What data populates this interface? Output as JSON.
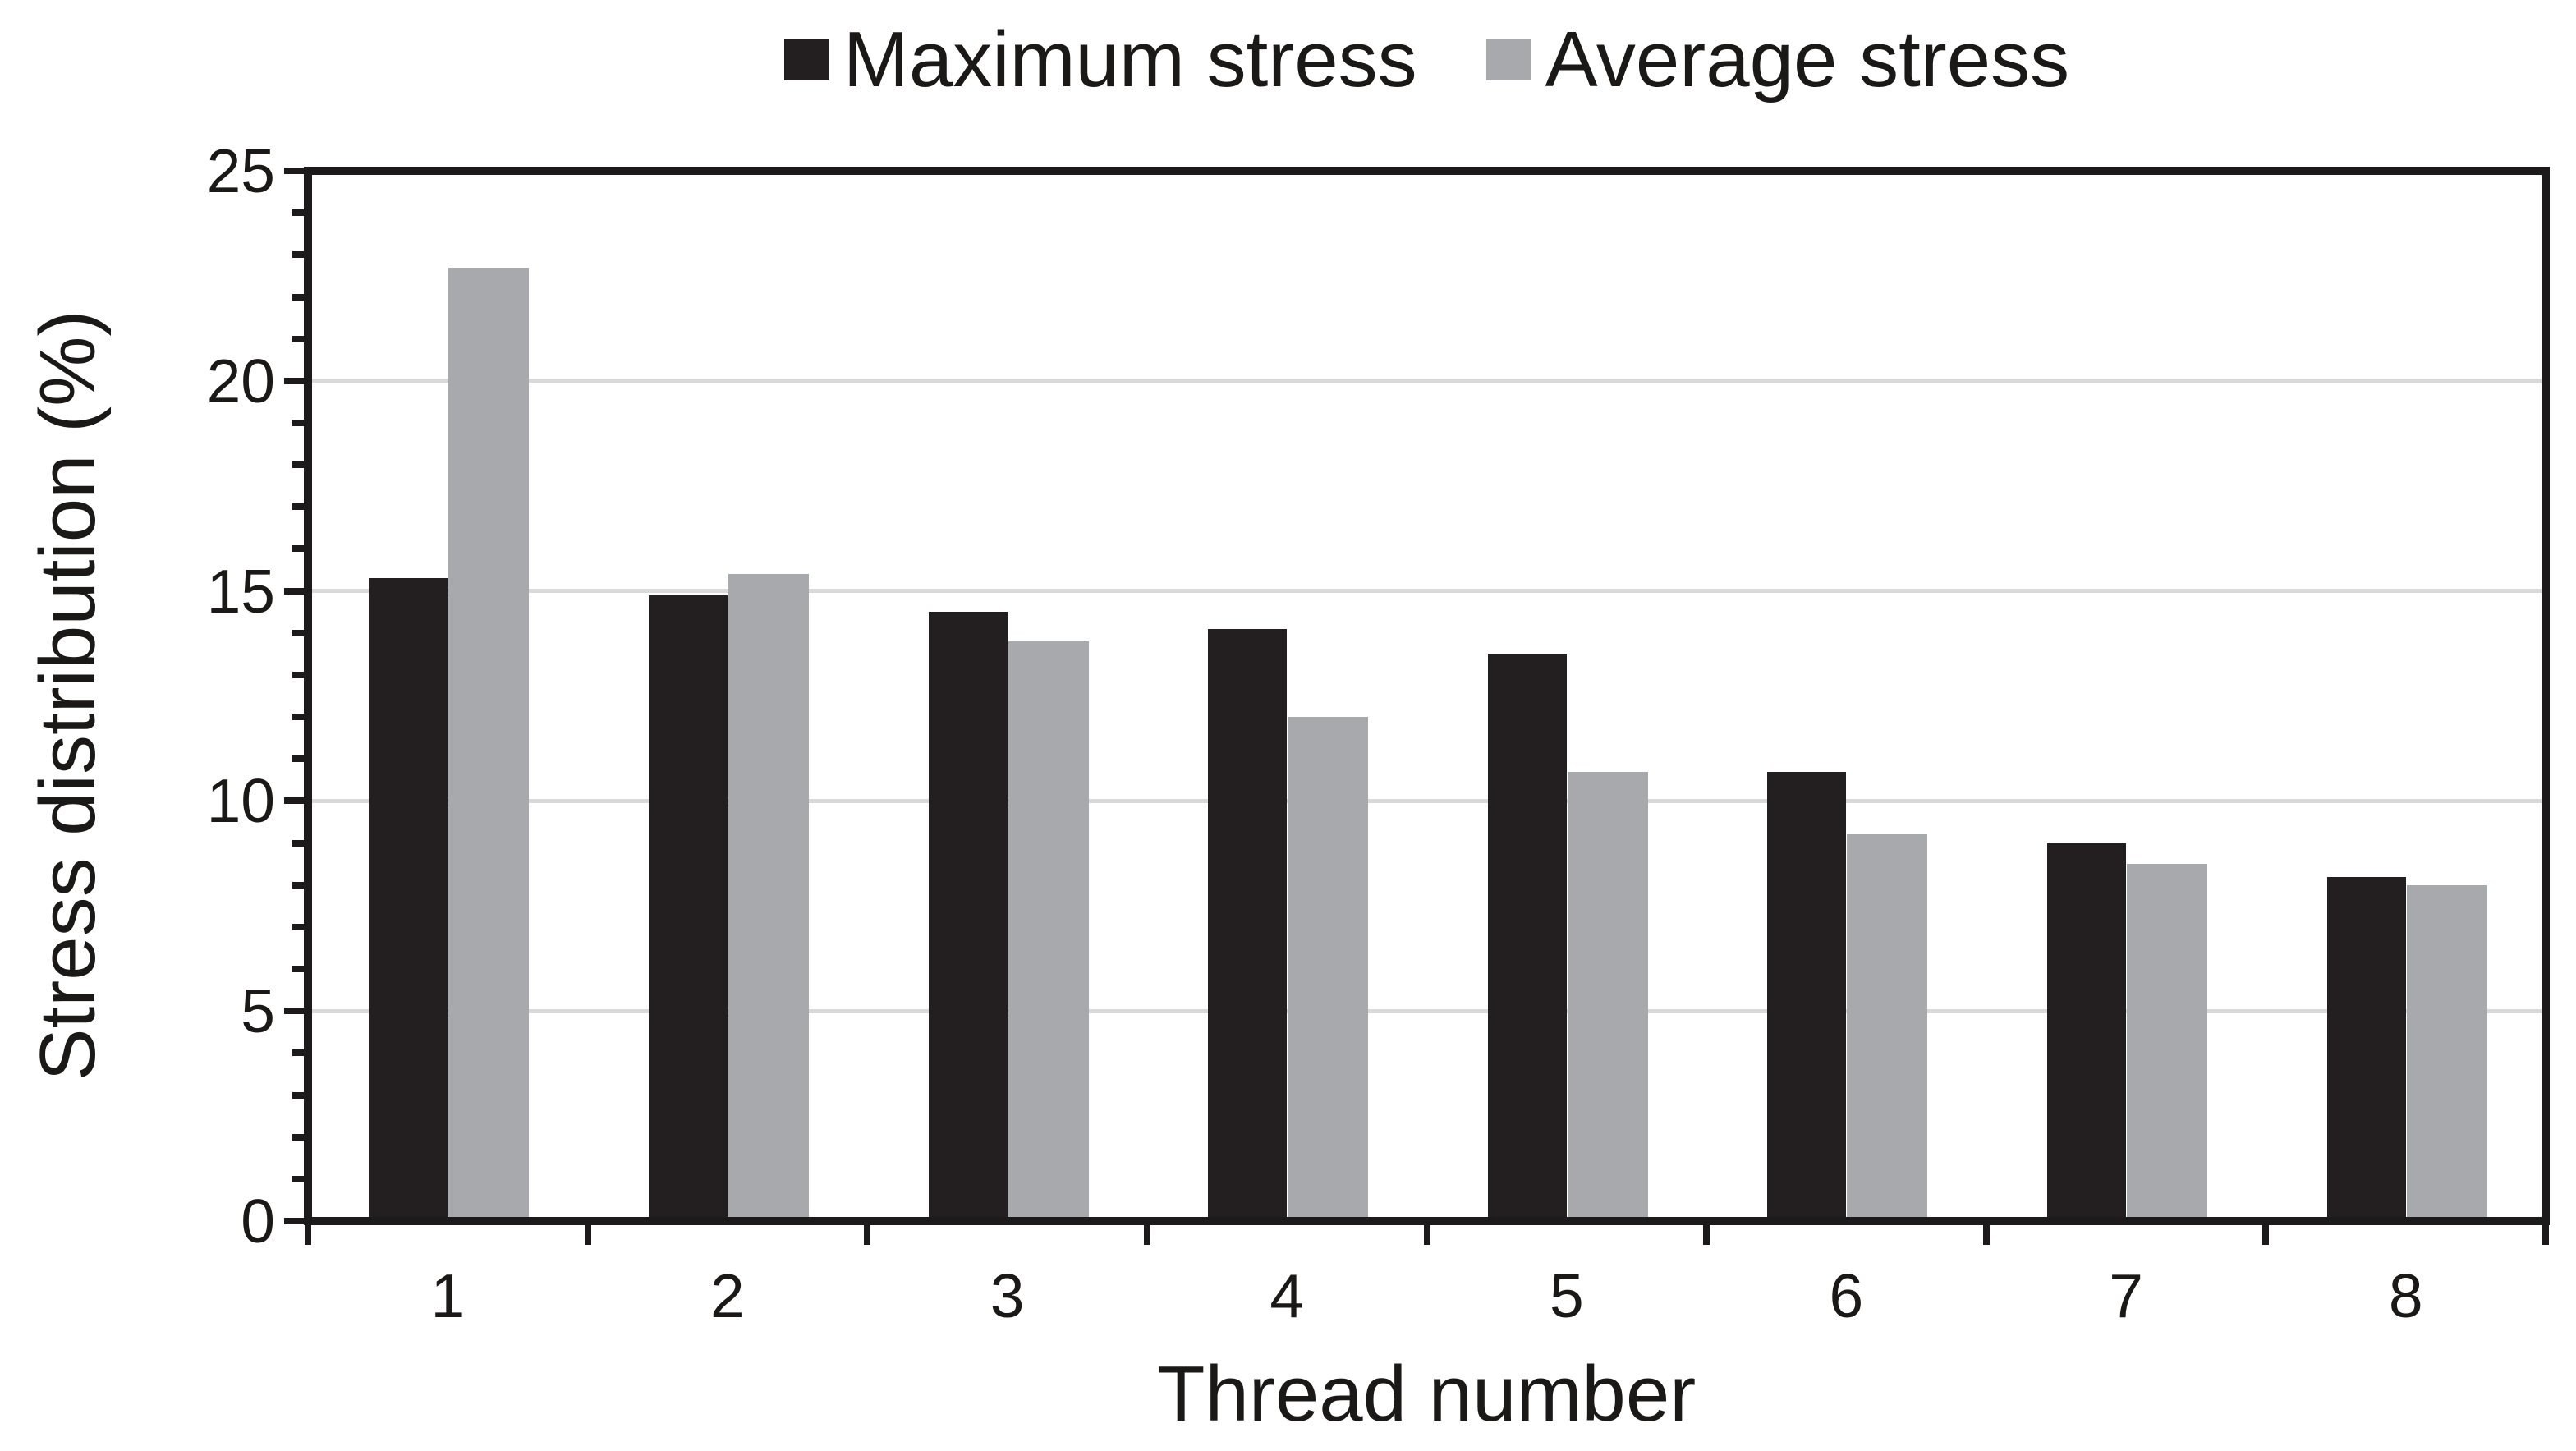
{
  "figure": {
    "legend": {
      "items": [
        {
          "label": "Maximum stress",
          "color": "#231F20"
        },
        {
          "label": "Average stress",
          "color": "#A7A9AC"
        }
      ]
    },
    "y_axis": {
      "title": "Stress distribution (%)",
      "tick_labels": [
        "0",
        "5",
        "10",
        "15",
        "20",
        "25"
      ]
    },
    "x_axis": {
      "title": "Thread number",
      "tick_labels": [
        "1",
        "2",
        "3",
        "4",
        "5",
        "6",
        "7",
        "8"
      ]
    }
  },
  "chart_data": {
    "type": "bar",
    "title": "",
    "categories": [
      1,
      2,
      3,
      4,
      5,
      6,
      7,
      8
    ],
    "series": [
      {
        "name": "Maximum stress",
        "color": "#231F20",
        "values": [
          15.3,
          14.9,
          14.5,
          14.1,
          13.5,
          10.7,
          9.0,
          8.2
        ]
      },
      {
        "name": "Average stress",
        "color": "#A7A9AC",
        "values": [
          22.7,
          15.4,
          13.8,
          12.0,
          10.7,
          9.2,
          8.5,
          8.0
        ]
      }
    ],
    "xlabel": "Thread number",
    "ylabel": "Stress distribution (%)",
    "ylim": [
      0,
      25
    ],
    "y_major_step": 5,
    "y_minor_step": 1,
    "grid": "horizontal-major",
    "legend_position": "top-center",
    "bar_group_gap_ratio": 0.44,
    "colors": {
      "grid": "#D9D9D9",
      "axis": "#1C1A1B",
      "text": "#1B1918",
      "background": "#FFFFFF"
    }
  }
}
